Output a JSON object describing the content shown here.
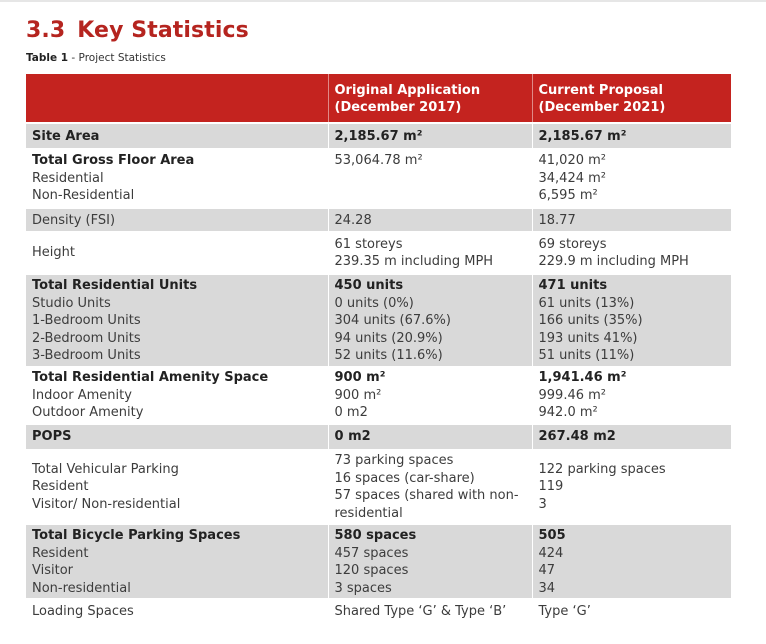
{
  "section": {
    "number": "3.3",
    "title": "Key Statistics"
  },
  "caption": {
    "label": "Table 1",
    "text": " - Project Statistics"
  },
  "table": {
    "headers": [
      "",
      "Original Application (December 2017)",
      "Current Proposal (December 2021)"
    ],
    "rows": [
      {
        "label": [
          "Site Area"
        ],
        "original": [
          "2,185.67 m²"
        ],
        "current": [
          "2,185.67 m²"
        ]
      },
      {
        "label": [
          "Total Gross Floor Area",
          "Residential",
          "Non-Residential"
        ],
        "original": [
          "53,064.78 m²"
        ],
        "current": [
          "41,020 m²",
          "34,424 m²",
          "6,595 m²"
        ]
      },
      {
        "label": [
          "Density (FSI)"
        ],
        "original": [
          "24.28"
        ],
        "current": [
          "18.77"
        ]
      },
      {
        "label": [
          "Height"
        ],
        "original": [
          "61 storeys",
          "239.35 m including MPH"
        ],
        "current": [
          "69 storeys",
          "229.9 m including MPH"
        ]
      },
      {
        "label": [
          "Total Residential Units",
          "Studio Units",
          "1-Bedroom Units",
          "2-Bedroom Units",
          "3-Bedroom Units"
        ],
        "original": [
          "450 units",
          "0 units (0%)",
          "304 units (67.6%)",
          "94 units (20.9%)",
          "52 units (11.6%)"
        ],
        "current": [
          "471 units",
          "61 units (13%)",
          "166 units (35%)",
          "193 units 41%)",
          "51 units (11%)"
        ]
      },
      {
        "label": [
          "Total Residential Amenity Space",
          "Indoor Amenity",
          "Outdoor Amenity"
        ],
        "original": [
          "900 m²",
          "900 m²",
          "0 m2"
        ],
        "current": [
          "1,941.46 m²",
          "999.46 m²",
          "942.0 m²"
        ]
      },
      {
        "label": [
          "POPS"
        ],
        "original": [
          "0 m2"
        ],
        "current": [
          "267.48 m2"
        ]
      },
      {
        "label": [
          "Total Vehicular Parking",
          "Resident",
          "Visitor/ Non-residential"
        ],
        "original": [
          "73 parking spaces",
          "16 spaces (car-share)",
          "57 spaces (shared with non-",
          "residential"
        ],
        "current": [
          "122 parking spaces",
          "119",
          "3"
        ]
      },
      {
        "label": [
          "Total Bicycle Parking Spaces",
          "Resident",
          "Visitor",
          "Non-residential"
        ],
        "original": [
          "580 spaces",
          "457 spaces",
          "120 spaces",
          "3 spaces"
        ],
        "current": [
          "505",
          "424",
          "47",
          "34"
        ]
      },
      {
        "label": [
          "Loading Spaces"
        ],
        "original": [
          "Shared Type ‘G’ & Type ‘B’"
        ],
        "current": [
          "Type ‘G’"
        ]
      }
    ]
  }
}
